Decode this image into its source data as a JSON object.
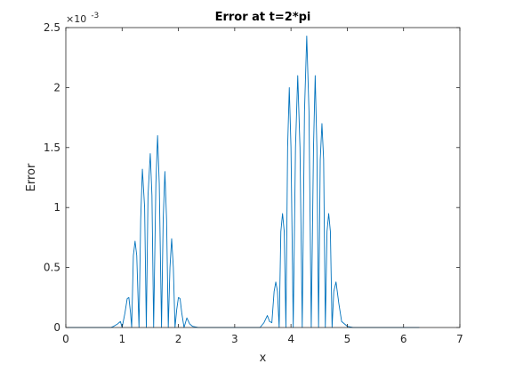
{
  "chart_data": {
    "type": "line",
    "title": "Error at t=2*pi",
    "xlabel": "x",
    "ylabel": "Error",
    "xlim": [
      0,
      7
    ],
    "ylim": [
      0,
      0.0025
    ],
    "xticks": [
      0,
      1,
      2,
      3,
      4,
      5,
      6,
      7
    ],
    "yticks": [
      0,
      0.0005,
      0.001,
      0.0015,
      0.002,
      0.0025
    ],
    "ytick_labels": [
      "0",
      "0.5",
      "1",
      "1.5",
      "2",
      "2.5"
    ],
    "y_exponent": {
      "base": "×10",
      "power": "-3"
    },
    "x_end": 6.28,
    "grid": false,
    "box": true,
    "series": [
      {
        "color": "#0072bd",
        "x": [
          0.0,
          0.8,
          0.85,
          0.92,
          0.97,
          1.0,
          1.05,
          1.09,
          1.12,
          1.15,
          1.17,
          1.2,
          1.23,
          1.26,
          1.3,
          1.33,
          1.36,
          1.4,
          1.43,
          1.46,
          1.5,
          1.53,
          1.56,
          1.6,
          1.63,
          1.66,
          1.7,
          1.73,
          1.76,
          1.79,
          1.82,
          1.85,
          1.88,
          1.91,
          1.94,
          1.97,
          2.0,
          2.03,
          2.06,
          2.1,
          2.15,
          2.2,
          2.25,
          2.35,
          2.5,
          3.45,
          3.52,
          3.58,
          3.62,
          3.66,
          3.7,
          3.73,
          3.76,
          3.79,
          3.82,
          3.85,
          3.88,
          3.91,
          3.94,
          3.97,
          4.0,
          4.04,
          4.08,
          4.12,
          4.16,
          4.2,
          4.24,
          4.28,
          4.32,
          4.36,
          4.4,
          4.43,
          4.46,
          4.49,
          4.52,
          4.55,
          4.58,
          4.61,
          4.64,
          4.67,
          4.7,
          4.73,
          4.76,
          4.8,
          4.85,
          4.9,
          5.0,
          5.1,
          6.28
        ],
        "y": [
          0.0,
          0.0,
          1e-05,
          3e-05,
          5e-05,
          0.0,
          0.00012,
          0.00024,
          0.00025,
          0.00012,
          0.0,
          0.0006,
          0.00072,
          0.0006,
          0.0,
          0.0009,
          0.00132,
          0.001,
          0.0,
          0.0011,
          0.00145,
          0.0011,
          0.0,
          0.0012,
          0.0016,
          0.0012,
          0.0,
          0.0009,
          0.0013,
          0.0009,
          0.0,
          0.0005,
          0.00074,
          0.0005,
          0.0,
          0.00015,
          0.00025,
          0.00024,
          0.00012,
          0.0,
          8e-05,
          3e-05,
          1e-05,
          0.0,
          0.0,
          0.0,
          4e-05,
          0.0001,
          5e-05,
          4e-05,
          0.0003,
          0.00038,
          0.0003,
          0.0,
          0.0008,
          0.00095,
          0.0008,
          0.0,
          0.0015,
          0.002,
          0.0015,
          0.0,
          0.0015,
          0.0021,
          0.0015,
          0.0,
          0.0018,
          0.00243,
          0.0018,
          0.0,
          0.0015,
          0.0021,
          0.0015,
          0.0,
          0.0014,
          0.0017,
          0.0014,
          0.0,
          0.0008,
          0.00095,
          0.0008,
          0.0,
          0.0003,
          0.00038,
          0.0002,
          5e-05,
          1e-05,
          0.0,
          0.0
        ]
      }
    ]
  }
}
